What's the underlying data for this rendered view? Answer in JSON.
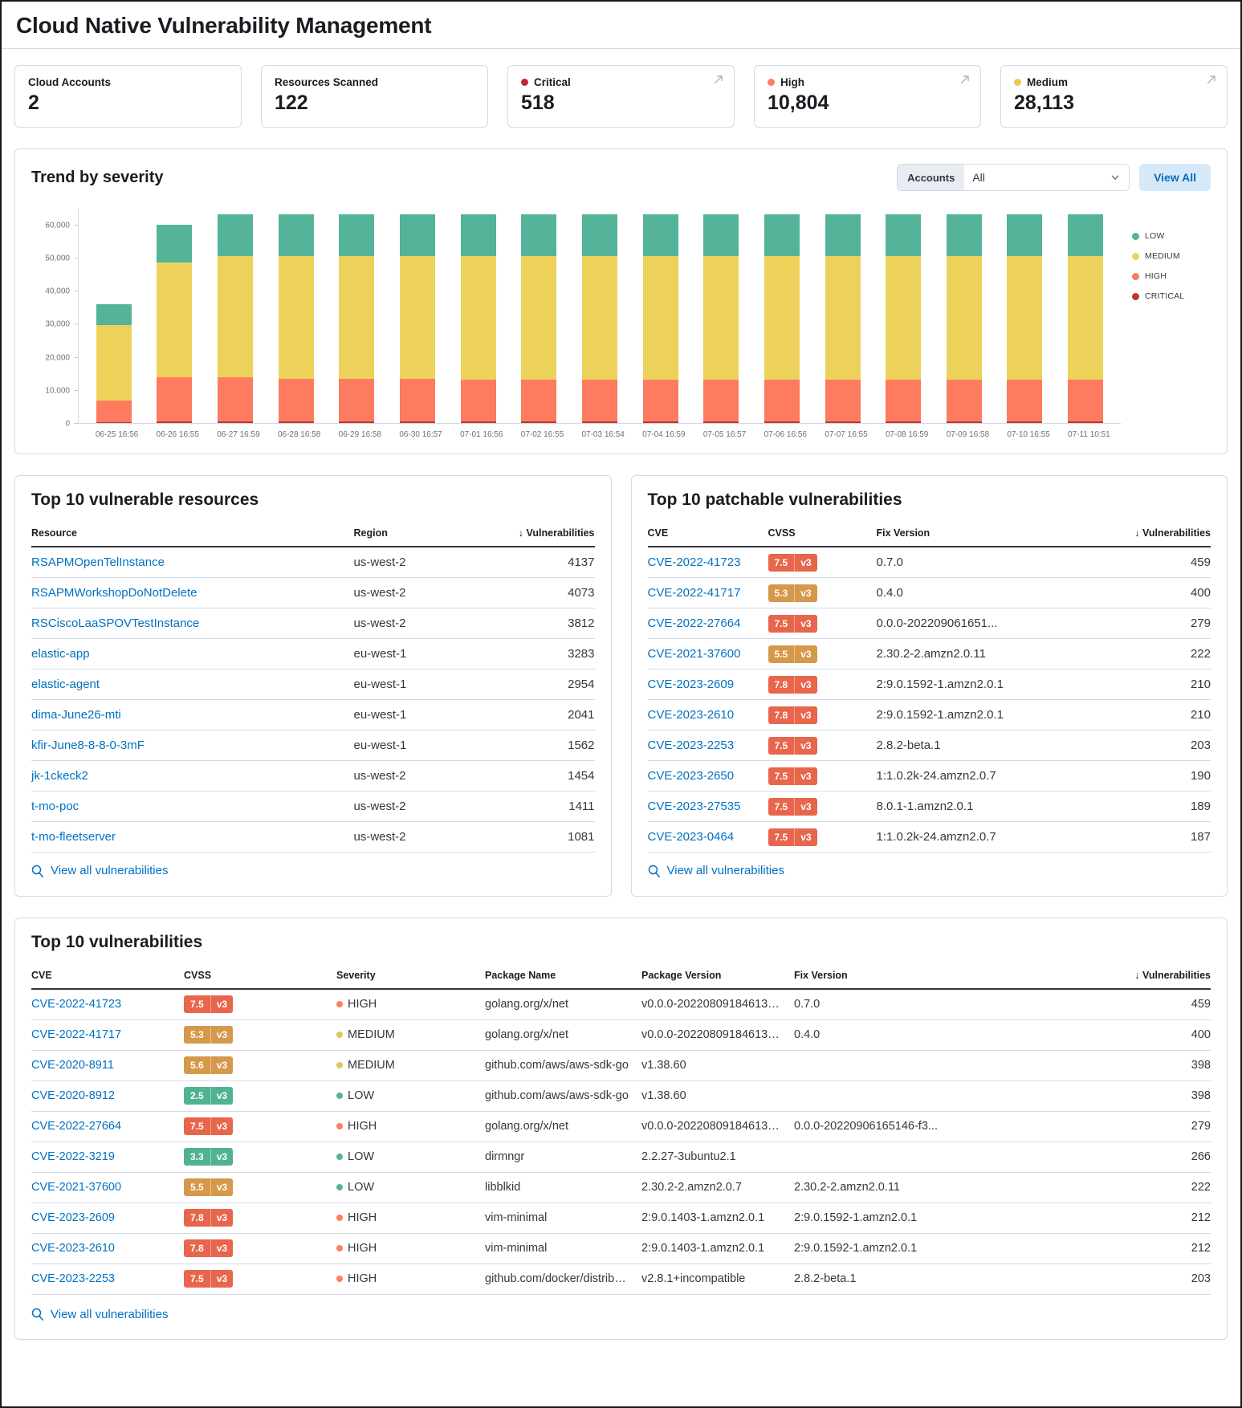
{
  "page": {
    "title": "Cloud Native Vulnerability Management"
  },
  "stats": [
    {
      "label": "Cloud Accounts",
      "value": "2",
      "dot": null,
      "expandable": false
    },
    {
      "label": "Resources Scanned",
      "value": "122",
      "dot": null,
      "expandable": false
    },
    {
      "label": "Critical",
      "value": "518",
      "dot": "#c4272e",
      "expandable": true
    },
    {
      "label": "High",
      "value": "10,804",
      "dot": "#fd7e61",
      "expandable": true
    },
    {
      "label": "Medium",
      "value": "28,113",
      "dot": "#e7c94f",
      "expandable": true
    }
  ],
  "trend": {
    "title": "Trend by severity",
    "accounts_label": "Accounts",
    "accounts_value": "All",
    "view_all_label": "View All"
  },
  "chart_data": {
    "type": "bar",
    "stacked": true,
    "title": "Trend by severity",
    "xlabel": "",
    "ylabel": "",
    "ylim": [
      0,
      65000
    ],
    "yticks": [
      0,
      10000,
      20000,
      30000,
      40000,
      50000,
      60000
    ],
    "grid": false,
    "legend_position": "right",
    "legend_order": [
      "LOW",
      "MEDIUM",
      "HIGH",
      "CRITICAL"
    ],
    "categories": [
      "06-25 16:56",
      "06-26 16:55",
      "06-27 16:59",
      "06-28 16:58",
      "06-29 16:58",
      "06-30 16:57",
      "07-01 16:56",
      "07-02 16:55",
      "07-03 16:54",
      "07-04 16:59",
      "07-05 16:57",
      "07-06 16:56",
      "07-07 16:55",
      "07-08 16:59",
      "07-09 16:58",
      "07-10 16:55",
      "07-11 10:51"
    ],
    "series": [
      {
        "name": "CRITICAL",
        "color": "#bf3530",
        "values": [
          350,
          550,
          600,
          600,
          600,
          600,
          600,
          600,
          600,
          600,
          600,
          600,
          600,
          600,
          600,
          600,
          600
        ]
      },
      {
        "name": "HIGH",
        "color": "#fd7b5e",
        "values": [
          6400,
          13300,
          13300,
          12700,
          12700,
          12700,
          12600,
          12600,
          12600,
          12600,
          12600,
          12600,
          12600,
          12600,
          12600,
          12600,
          12600
        ]
      },
      {
        "name": "MEDIUM",
        "color": "#ecd25b",
        "values": [
          22800,
          34700,
          36600,
          37200,
          37200,
          37200,
          37300,
          37300,
          37300,
          37300,
          37300,
          37300,
          37300,
          37300,
          37300,
          37300,
          37300
        ]
      },
      {
        "name": "LOW",
        "color": "#54b399",
        "values": [
          6450,
          11400,
          12500,
          12600,
          12600,
          12600,
          12600,
          12600,
          12600,
          12600,
          12600,
          12600,
          12600,
          12600,
          12600,
          12600,
          12600
        ]
      }
    ]
  },
  "resources_panel": {
    "title": "Top 10 vulnerable resources",
    "columns": {
      "resource": "Resource",
      "region": "Region",
      "vulnerabilities": "Vulnerabilities"
    },
    "sort_icon": "↓",
    "rows": [
      {
        "resource": "RSAPMOpenTelInstance",
        "region": "us-west-2",
        "count": "4137"
      },
      {
        "resource": "RSAPMWorkshopDoNotDelete",
        "region": "us-west-2",
        "count": "4073"
      },
      {
        "resource": "RSCiscoLaaSPOVTestInstance",
        "region": "us-west-2",
        "count": "3812"
      },
      {
        "resource": "elastic-app",
        "region": "eu-west-1",
        "count": "3283"
      },
      {
        "resource": "elastic-agent",
        "region": "eu-west-1",
        "count": "2954"
      },
      {
        "resource": "dima-June26-mti",
        "region": "eu-west-1",
        "count": "2041"
      },
      {
        "resource": "kfir-June8-8-8-0-3mF",
        "region": "eu-west-1",
        "count": "1562"
      },
      {
        "resource": "jk-1ckeck2",
        "region": "us-west-2",
        "count": "1454"
      },
      {
        "resource": "t-mo-poc",
        "region": "us-west-2",
        "count": "1411"
      },
      {
        "resource": "t-mo-fleetserver",
        "region": "us-west-2",
        "count": "1081"
      }
    ],
    "view_all": "View all vulnerabilities"
  },
  "patchable_panel": {
    "title": "Top 10 patchable vulnerabilities",
    "columns": {
      "cve": "CVE",
      "cvss": "CVSS",
      "fix": "Fix Version",
      "vulnerabilities": "Vulnerabilities"
    },
    "sort_icon": "↓",
    "rows": [
      {
        "cve": "CVE-2022-41723",
        "score": "7.5",
        "ver": "v3",
        "badge": "high",
        "fix": "0.7.0",
        "count": "459"
      },
      {
        "cve": "CVE-2022-41717",
        "score": "5.3",
        "ver": "v3",
        "badge": "medium",
        "fix": "0.4.0",
        "count": "400"
      },
      {
        "cve": "CVE-2022-27664",
        "score": "7.5",
        "ver": "v3",
        "badge": "high",
        "fix": "0.0.0-202209061651...",
        "count": "279"
      },
      {
        "cve": "CVE-2021-37600",
        "score": "5.5",
        "ver": "v3",
        "badge": "medium",
        "fix": "2.30.2-2.amzn2.0.11",
        "count": "222"
      },
      {
        "cve": "CVE-2023-2609",
        "score": "7.8",
        "ver": "v3",
        "badge": "high",
        "fix": "2:9.0.1592-1.amzn2.0.1",
        "count": "210"
      },
      {
        "cve": "CVE-2023-2610",
        "score": "7.8",
        "ver": "v3",
        "badge": "high",
        "fix": "2:9.0.1592-1.amzn2.0.1",
        "count": "210"
      },
      {
        "cve": "CVE-2023-2253",
        "score": "7.5",
        "ver": "v3",
        "badge": "high",
        "fix": "2.8.2-beta.1",
        "count": "203"
      },
      {
        "cve": "CVE-2023-2650",
        "score": "7.5",
        "ver": "v3",
        "badge": "high",
        "fix": "1:1.0.2k-24.amzn2.0.7",
        "count": "190"
      },
      {
        "cve": "CVE-2023-27535",
        "score": "7.5",
        "ver": "v3",
        "badge": "high",
        "fix": "8.0.1-1.amzn2.0.1",
        "count": "189"
      },
      {
        "cve": "CVE-2023-0464",
        "score": "7.5",
        "ver": "v3",
        "badge": "high",
        "fix": "1:1.0.2k-24.amzn2.0.7",
        "count": "187"
      }
    ],
    "view_all": "View all vulnerabilities"
  },
  "vulns_panel": {
    "title": "Top 10 vulnerabilities",
    "columns": {
      "cve": "CVE",
      "cvss": "CVSS",
      "severity": "Severity",
      "package_name": "Package Name",
      "package_version": "Package Version",
      "fix": "Fix Version",
      "vulnerabilities": "Vulnerabilities"
    },
    "sort_icon": "↓",
    "rows": [
      {
        "cve": "CVE-2022-41723",
        "score": "7.5",
        "ver": "v3",
        "badge": "high",
        "severity": "HIGH",
        "sev": "high",
        "pkg": "golang.org/x/net",
        "pkg_ver": "v0.0.0-20220809184613-0...",
        "fix": "0.7.0",
        "count": "459"
      },
      {
        "cve": "CVE-2022-41717",
        "score": "5.3",
        "ver": "v3",
        "badge": "medium",
        "severity": "MEDIUM",
        "sev": "medium",
        "pkg": "golang.org/x/net",
        "pkg_ver": "v0.0.0-20220809184613-0...",
        "fix": "0.4.0",
        "count": "400"
      },
      {
        "cve": "CVE-2020-8911",
        "score": "5.6",
        "ver": "v3",
        "badge": "medium",
        "severity": "MEDIUM",
        "sev": "medium",
        "pkg": "github.com/aws/aws-sdk-go",
        "pkg_ver": "v1.38.60",
        "fix": "",
        "count": "398"
      },
      {
        "cve": "CVE-2020-8912",
        "score": "2.5",
        "ver": "v3",
        "badge": "low",
        "severity": "LOW",
        "sev": "low",
        "pkg": "github.com/aws/aws-sdk-go",
        "pkg_ver": "v1.38.60",
        "fix": "",
        "count": "398"
      },
      {
        "cve": "CVE-2022-27664",
        "score": "7.5",
        "ver": "v3",
        "badge": "high",
        "severity": "HIGH",
        "sev": "high",
        "pkg": "golang.org/x/net",
        "pkg_ver": "v0.0.0-20220809184613-0...",
        "fix": "0.0.0-20220906165146-f3...",
        "count": "279"
      },
      {
        "cve": "CVE-2022-3219",
        "score": "3.3",
        "ver": "v3",
        "badge": "low",
        "severity": "LOW",
        "sev": "low",
        "pkg": "dirmngr",
        "pkg_ver": "2.2.27-3ubuntu2.1",
        "fix": "",
        "count": "266"
      },
      {
        "cve": "CVE-2021-37600",
        "score": "5.5",
        "ver": "v3",
        "badge": "medium",
        "severity": "LOW",
        "sev": "low",
        "pkg": "libblkid",
        "pkg_ver": "2.30.2-2.amzn2.0.7",
        "fix": "2.30.2-2.amzn2.0.11",
        "count": "222"
      },
      {
        "cve": "CVE-2023-2609",
        "score": "7.8",
        "ver": "v3",
        "badge": "high",
        "severity": "HIGH",
        "sev": "high",
        "pkg": "vim-minimal",
        "pkg_ver": "2:9.0.1403-1.amzn2.0.1",
        "fix": "2:9.0.1592-1.amzn2.0.1",
        "count": "212"
      },
      {
        "cve": "CVE-2023-2610",
        "score": "7.8",
        "ver": "v3",
        "badge": "high",
        "severity": "HIGH",
        "sev": "high",
        "pkg": "vim-minimal",
        "pkg_ver": "2:9.0.1403-1.amzn2.0.1",
        "fix": "2:9.0.1592-1.amzn2.0.1",
        "count": "212"
      },
      {
        "cve": "CVE-2023-2253",
        "score": "7.5",
        "ver": "v3",
        "badge": "high",
        "severity": "HIGH",
        "sev": "high",
        "pkg": "github.com/docker/distribu...",
        "pkg_ver": "v2.8.1+incompatible",
        "fix": "2.8.2-beta.1",
        "count": "203"
      }
    ],
    "view_all": "View all vulnerabilities"
  },
  "colors": {
    "badge": {
      "high": "#e7664c",
      "medium": "#d6984a",
      "low": "#4fb392"
    },
    "severity_dot": {
      "high": "#fd7e61",
      "medium": "#e3c854",
      "low": "#54b399"
    },
    "link": "#0071c2"
  }
}
